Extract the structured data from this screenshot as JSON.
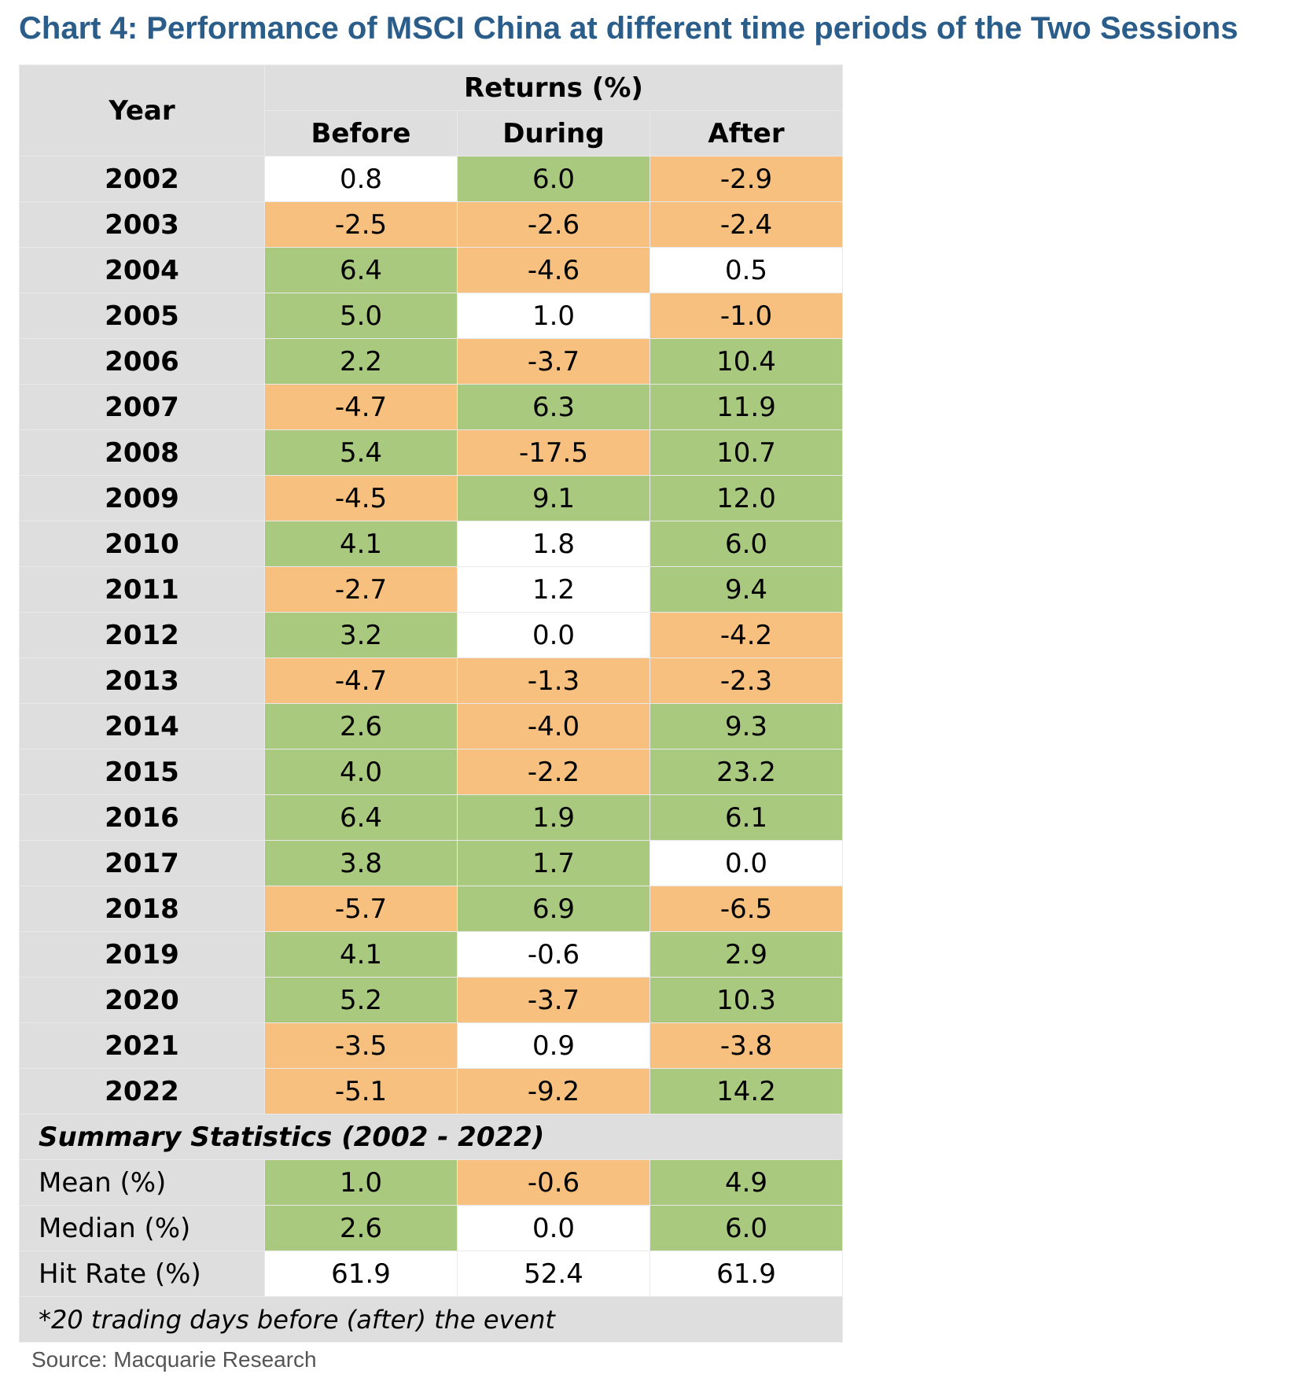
{
  "title": "Chart 4: Performance of MSCI China at different time periods of the Two Sessions",
  "source": "Source: Macquarie Research",
  "colors": {
    "positive": "#a9c97e",
    "negative": "#f8c07e",
    "neutral": "#ffffff",
    "header": "#dedede",
    "title": "#2a5d8a"
  },
  "chart_data": {
    "type": "table",
    "header": {
      "year": "Year",
      "group": "Returns (%)",
      "columns": [
        "Before",
        "During",
        "After"
      ]
    },
    "rows": [
      {
        "year": "2002",
        "values": [
          "0.8",
          "6.0",
          "-2.9"
        ],
        "tones": [
          "neu",
          "pos",
          "neg"
        ]
      },
      {
        "year": "2003",
        "values": [
          "-2.5",
          "-2.6",
          "-2.4"
        ],
        "tones": [
          "neg",
          "neg",
          "neg"
        ]
      },
      {
        "year": "2004",
        "values": [
          "6.4",
          "-4.6",
          "0.5"
        ],
        "tones": [
          "pos",
          "neg",
          "neu"
        ]
      },
      {
        "year": "2005",
        "values": [
          "5.0",
          "1.0",
          "-1.0"
        ],
        "tones": [
          "pos",
          "neu",
          "neg"
        ]
      },
      {
        "year": "2006",
        "values": [
          "2.2",
          "-3.7",
          "10.4"
        ],
        "tones": [
          "pos",
          "neg",
          "pos"
        ]
      },
      {
        "year": "2007",
        "values": [
          "-4.7",
          "6.3",
          "11.9"
        ],
        "tones": [
          "neg",
          "pos",
          "pos"
        ]
      },
      {
        "year": "2008",
        "values": [
          "5.4",
          "-17.5",
          "10.7"
        ],
        "tones": [
          "pos",
          "neg",
          "pos"
        ]
      },
      {
        "year": "2009",
        "values": [
          "-4.5",
          "9.1",
          "12.0"
        ],
        "tones": [
          "neg",
          "pos",
          "pos"
        ]
      },
      {
        "year": "2010",
        "values": [
          "4.1",
          "1.8",
          "6.0"
        ],
        "tones": [
          "pos",
          "neu",
          "pos"
        ]
      },
      {
        "year": "2011",
        "values": [
          "-2.7",
          "1.2",
          "9.4"
        ],
        "tones": [
          "neg",
          "neu",
          "pos"
        ]
      },
      {
        "year": "2012",
        "values": [
          "3.2",
          "0.0",
          "-4.2"
        ],
        "tones": [
          "pos",
          "neu",
          "neg"
        ]
      },
      {
        "year": "2013",
        "values": [
          "-4.7",
          "-1.3",
          "-2.3"
        ],
        "tones": [
          "neg",
          "neg",
          "neg"
        ]
      },
      {
        "year": "2014",
        "values": [
          "2.6",
          "-4.0",
          "9.3"
        ],
        "tones": [
          "pos",
          "neg",
          "pos"
        ]
      },
      {
        "year": "2015",
        "values": [
          "4.0",
          "-2.2",
          "23.2"
        ],
        "tones": [
          "pos",
          "neg",
          "pos"
        ]
      },
      {
        "year": "2016",
        "values": [
          "6.4",
          "1.9",
          "6.1"
        ],
        "tones": [
          "pos",
          "pos",
          "pos"
        ]
      },
      {
        "year": "2017",
        "values": [
          "3.8",
          "1.7",
          "0.0"
        ],
        "tones": [
          "pos",
          "pos",
          "neu"
        ]
      },
      {
        "year": "2018",
        "values": [
          "-5.7",
          "6.9",
          "-6.5"
        ],
        "tones": [
          "neg",
          "pos",
          "neg"
        ]
      },
      {
        "year": "2019",
        "values": [
          "4.1",
          "-0.6",
          "2.9"
        ],
        "tones": [
          "pos",
          "neu",
          "pos"
        ]
      },
      {
        "year": "2020",
        "values": [
          "5.2",
          "-3.7",
          "10.3"
        ],
        "tones": [
          "pos",
          "neg",
          "pos"
        ]
      },
      {
        "year": "2021",
        "values": [
          "-3.5",
          "0.9",
          "-3.8"
        ],
        "tones": [
          "neg",
          "neu",
          "neg"
        ]
      },
      {
        "year": "2022",
        "values": [
          "-5.1",
          "-9.2",
          "14.2"
        ],
        "tones": [
          "neg",
          "neg",
          "pos"
        ]
      }
    ],
    "summary_title": "Summary Statistics (2002 - 2022)",
    "summary": [
      {
        "label": "Mean (%)",
        "values": [
          "1.0",
          "-0.6",
          "4.9"
        ],
        "tones": [
          "pos",
          "neg",
          "pos"
        ]
      },
      {
        "label": "Median (%)",
        "values": [
          "2.6",
          "0.0",
          "6.0"
        ],
        "tones": [
          "pos",
          "neu",
          "pos"
        ]
      },
      {
        "label": "Hit Rate (%)",
        "values": [
          "61.9",
          "52.4",
          "61.9"
        ],
        "tones": [
          "neu",
          "neu",
          "neu"
        ]
      }
    ],
    "footnote": "*20 trading days before (after) the event"
  }
}
